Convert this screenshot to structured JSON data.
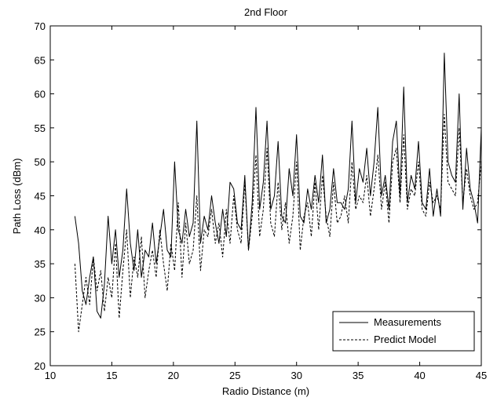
{
  "chart_data": {
    "type": "line",
    "title": "2nd Floor",
    "xlabel": "Radio Distance (m)",
    "ylabel": "Path Loss (dBm)",
    "xlim": [
      10,
      45
    ],
    "ylim": [
      20,
      70
    ],
    "xticks": [
      10,
      15,
      20,
      25,
      30,
      35,
      40,
      45
    ],
    "yticks": [
      20,
      25,
      30,
      35,
      40,
      45,
      50,
      55,
      60,
      65,
      70
    ],
    "grid": false,
    "legend_position": "bottom-right",
    "series": [
      {
        "name": "Measurements",
        "style": "solid",
        "color": "#000000",
        "x": [
          12.0,
          12.3,
          12.6,
          12.9,
          13.2,
          13.5,
          13.8,
          14.1,
          14.4,
          14.7,
          15.0,
          15.3,
          15.6,
          15.9,
          16.2,
          16.5,
          16.8,
          17.1,
          17.4,
          17.7,
          18.0,
          18.3,
          18.6,
          18.9,
          19.2,
          19.5,
          19.8,
          20.1,
          20.4,
          20.7,
          21.0,
          21.3,
          21.6,
          21.9,
          22.2,
          22.5,
          22.8,
          23.1,
          23.4,
          23.7,
          24.0,
          24.3,
          24.6,
          24.9,
          25.2,
          25.5,
          25.8,
          26.1,
          26.4,
          26.7,
          27.0,
          27.3,
          27.6,
          27.9,
          28.2,
          28.5,
          28.8,
          29.1,
          29.4,
          29.7,
          30.0,
          30.3,
          30.6,
          30.9,
          31.2,
          31.5,
          31.8,
          32.1,
          32.4,
          32.7,
          33.0,
          33.3,
          33.6,
          33.9,
          34.2,
          34.5,
          34.8,
          35.1,
          35.4,
          35.7,
          36.0,
          36.3,
          36.6,
          36.9,
          37.2,
          37.5,
          37.8,
          38.1,
          38.4,
          38.7,
          39.0,
          39.3,
          39.6,
          39.9,
          40.2,
          40.5,
          40.8,
          41.1,
          41.4,
          41.7,
          42.0,
          42.3,
          42.6,
          42.9,
          43.2,
          43.5,
          43.8,
          44.1,
          44.4,
          44.7,
          45.0
        ],
        "values": [
          42,
          38,
          31,
          29,
          33,
          36,
          28,
          27,
          32,
          42,
          35,
          40,
          33,
          37,
          46,
          38,
          34,
          40,
          33,
          37,
          36,
          41,
          35,
          39,
          43,
          37,
          36,
          50,
          40,
          38,
          43,
          39,
          41,
          56,
          38,
          42,
          40,
          45,
          41,
          38,
          43,
          39,
          47,
          46,
          41,
          40,
          48,
          37,
          44,
          58,
          43,
          47,
          56,
          43,
          45,
          53,
          42,
          41,
          49,
          45,
          54,
          42,
          41,
          46,
          43,
          48,
          44,
          51,
          41,
          43,
          49,
          44,
          44,
          43,
          46,
          56,
          44,
          49,
          47,
          52,
          45,
          50,
          58,
          45,
          48,
          43,
          53,
          56,
          45,
          61,
          44,
          48,
          46,
          53,
          44,
          43,
          49,
          42,
          46,
          42,
          66,
          50,
          48,
          47,
          60,
          43,
          52,
          46,
          44,
          41,
          55
        ]
      },
      {
        "name": "Predict Model",
        "style": "dashed",
        "color": "#000000",
        "x": [
          12.0,
          12.3,
          12.6,
          12.9,
          13.2,
          13.5,
          13.8,
          14.1,
          14.4,
          14.7,
          15.0,
          15.3,
          15.6,
          15.9,
          16.2,
          16.5,
          16.8,
          17.1,
          17.4,
          17.7,
          18.0,
          18.3,
          18.6,
          18.9,
          19.2,
          19.5,
          19.8,
          20.1,
          20.4,
          20.7,
          21.0,
          21.3,
          21.6,
          21.9,
          22.2,
          22.5,
          22.8,
          23.1,
          23.4,
          23.7,
          24.0,
          24.3,
          24.6,
          24.9,
          25.2,
          25.5,
          25.8,
          26.1,
          26.4,
          26.7,
          27.0,
          27.3,
          27.6,
          27.9,
          28.2,
          28.5,
          28.8,
          29.1,
          29.4,
          29.7,
          30.0,
          30.3,
          30.6,
          30.9,
          31.2,
          31.5,
          31.8,
          32.1,
          32.4,
          32.7,
          33.0,
          33.3,
          33.6,
          33.9,
          34.2,
          34.5,
          34.8,
          35.1,
          35.4,
          35.7,
          36.0,
          36.3,
          36.6,
          36.9,
          37.2,
          37.5,
          37.8,
          38.1,
          38.4,
          38.7,
          39.0,
          39.3,
          39.6,
          39.9,
          40.2,
          40.5,
          40.8,
          41.1,
          41.4,
          41.7,
          42.0,
          42.3,
          42.6,
          42.9,
          43.2,
          43.5,
          43.8,
          44.1,
          44.4,
          44.7,
          45.0
        ],
        "values": [
          35,
          25,
          29,
          33,
          29,
          36,
          31,
          34,
          28,
          33,
          30,
          38,
          27,
          34,
          40,
          30,
          36,
          33,
          39,
          30,
          34,
          37,
          33,
          40,
          35,
          31,
          38,
          34,
          44,
          33,
          41,
          35,
          37,
          45,
          34,
          40,
          39,
          43,
          38,
          41,
          36,
          43,
          38,
          45,
          40,
          38,
          47,
          37,
          42,
          51,
          39,
          43,
          52,
          41,
          39,
          47,
          40,
          44,
          38,
          42,
          50,
          37,
          42,
          44,
          39,
          47,
          40,
          48,
          42,
          39,
          47,
          41,
          42,
          45,
          41,
          50,
          43,
          45,
          44,
          48,
          42,
          46,
          51,
          43,
          47,
          41,
          50,
          52,
          44,
          54,
          43,
          46,
          45,
          50,
          43,
          42,
          47,
          44,
          45,
          43,
          57,
          47,
          46,
          45,
          55,
          44,
          49,
          45,
          43,
          44,
          50
        ]
      }
    ]
  }
}
